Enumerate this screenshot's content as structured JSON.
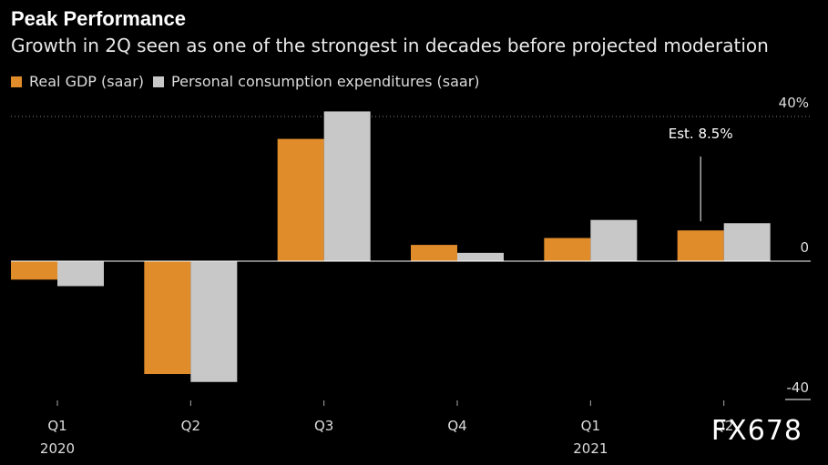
{
  "title": "Peak Performance",
  "subtitle": "Growth in 2Q seen as one of the strongest in decades before projected moderation",
  "watermark": "FX678",
  "colors": {
    "gdp": "#e08c2a",
    "pce": "#c8c8c8",
    "background": "#000000"
  },
  "chart_data": {
    "type": "bar",
    "categories": [
      "Q1",
      "Q2",
      "Q3",
      "Q4",
      "Q1",
      "Q2"
    ],
    "year_labels": [
      "2020",
      "",
      "",
      "",
      "2021",
      ""
    ],
    "series": [
      {
        "name": "Real GDP (saar)",
        "values": [
          -5.1,
          -31.2,
          33.8,
          4.5,
          6.4,
          8.5
        ]
      },
      {
        "name": "Personal consumption expenditures (saar)",
        "values": [
          -6.9,
          -33.4,
          41.4,
          2.3,
          11.4,
          10.5
        ]
      }
    ],
    "ylim": [
      -40,
      40
    ],
    "yticks": [
      "40%",
      "0",
      "-40"
    ],
    "annotation": "Est. 8.5%",
    "grid": "dotted line at 40%",
    "legend_position": "top-left"
  }
}
